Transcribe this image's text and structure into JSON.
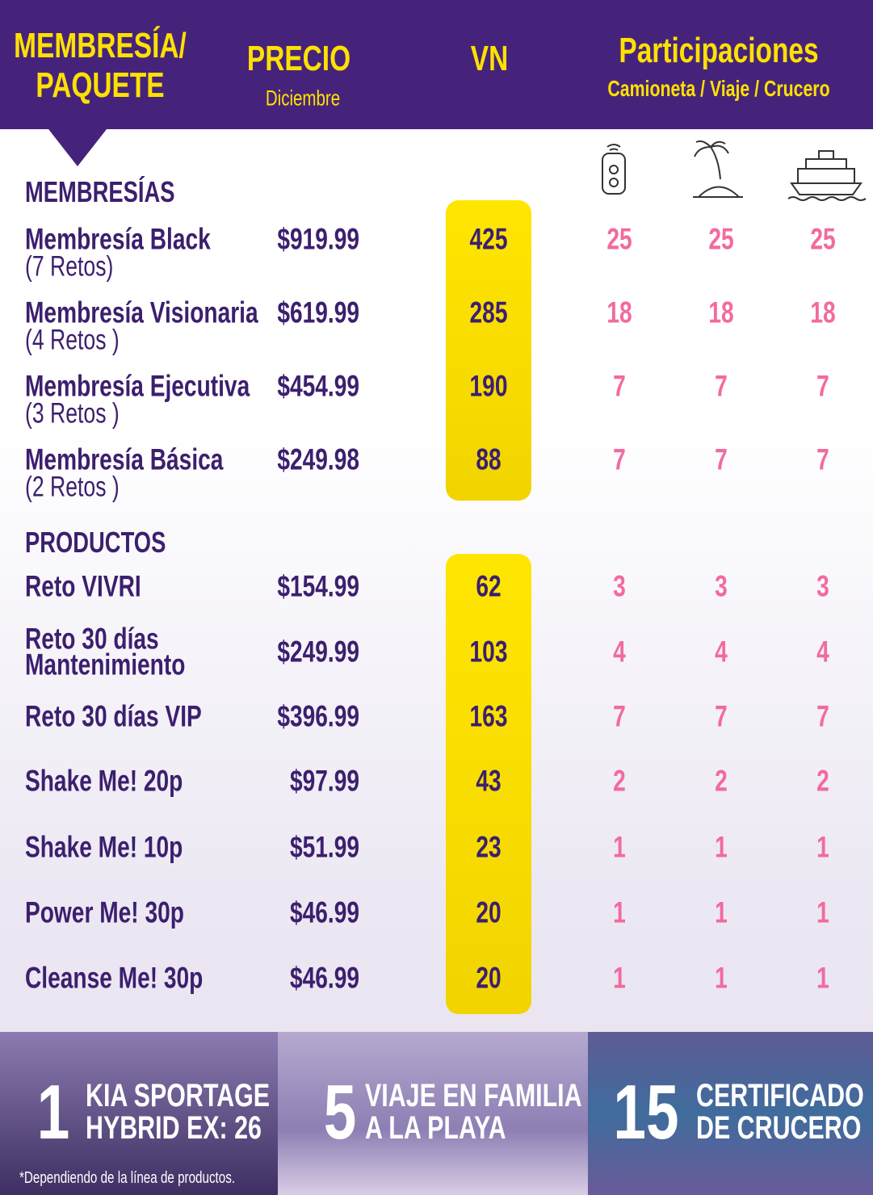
{
  "header": {
    "membership": [
      "MEMBRESÍA/",
      "PAQUETE"
    ],
    "price": "PRECIO",
    "price_sub": "Diciembre",
    "vn": "VN",
    "participations": "Participaciones",
    "participations_sub": "Camioneta / Viaje / Crucero"
  },
  "sections": [
    {
      "title": "MEMBRESÍAS",
      "rows": [
        {
          "name": [
            "Membresía Black"
          ],
          "note": "(7 Retos)",
          "price": "$919.99",
          "vn": 425,
          "truck": 25,
          "trip": 25,
          "cruise": 25
        },
        {
          "name": [
            "Membresía Visionaria"
          ],
          "note": "(4 Retos )",
          "price": "$619.99",
          "vn": 285,
          "truck": 18,
          "trip": 18,
          "cruise": 18
        },
        {
          "name": [
            "Membresía Ejecutiva"
          ],
          "note": "(3 Retos )",
          "price": "$454.99",
          "vn": 190,
          "truck": 7,
          "trip": 7,
          "cruise": 7
        },
        {
          "name": [
            "Membresía Básica"
          ],
          "note": "(2 Retos )",
          "price": "$249.98",
          "vn": 88,
          "truck": 7,
          "trip": 7,
          "cruise": 7
        }
      ]
    },
    {
      "title": "PRODUCTOS",
      "rows": [
        {
          "name": [
            "Reto VIVRI"
          ],
          "price": "$154.99",
          "vn": 62,
          "truck": 3,
          "trip": 3,
          "cruise": 3
        },
        {
          "name": [
            "Reto 30 días",
            "Mantenimiento"
          ],
          "price": "$249.99",
          "vn": 103,
          "truck": 4,
          "trip": 4,
          "cruise": 4
        },
        {
          "name": [
            "Reto 30 días VIP"
          ],
          "price": "$396.99",
          "vn": 163,
          "truck": 7,
          "trip": 7,
          "cruise": 7
        },
        {
          "name": [
            "Shake Me! 20p"
          ],
          "price": "$97.99",
          "vn": 43,
          "truck": 2,
          "trip": 2,
          "cruise": 2
        },
        {
          "name": [
            "Shake Me! 10p"
          ],
          "price": "$51.99",
          "vn": 23,
          "truck": 1,
          "trip": 1,
          "cruise": 1
        },
        {
          "name": [
            "Power Me! 30p"
          ],
          "price": "$46.99",
          "vn": 20,
          "truck": 1,
          "trip": 1,
          "cruise": 1
        },
        {
          "name": [
            "Cleanse Me! 30p"
          ],
          "price": "$46.99",
          "vn": 20,
          "truck": 1,
          "trip": 1,
          "cruise": 1
        }
      ]
    }
  ],
  "prizes": [
    {
      "count": 1,
      "label": [
        "KIA SPORTAGE",
        "HYBRID EX: 26"
      ]
    },
    {
      "count": 5,
      "label": [
        "VIAJE EN FAMILIA",
        "A LA PLAYA"
      ]
    },
    {
      "count": 15,
      "label": [
        "CERTIFICADO",
        "DE CRUCERO"
      ]
    }
  ],
  "footnote": "*Dependiendo de la línea de productos."
}
